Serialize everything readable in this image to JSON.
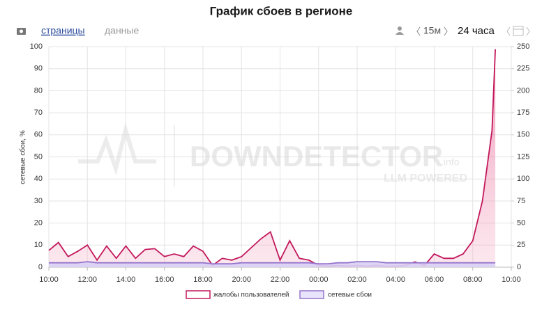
{
  "chart_data": {
    "type": "line",
    "title": "График сбоев в регионе",
    "toolbar": {
      "links": [
        "страницы",
        "данные"
      ],
      "interval": "15м",
      "range": "24 часа"
    },
    "ylabel": "сетевые сбои, %",
    "watermark": {
      "brand": "DOWNDETECTOR",
      "suffix": ".info",
      "tagline": "LLM POWERED"
    },
    "x": [
      10,
      10.5,
      11,
      11.5,
      12,
      12.5,
      13,
      13.5,
      14,
      14.5,
      15,
      15.5,
      16,
      16.5,
      17,
      17.5,
      18,
      18.5,
      19,
      19.5,
      20,
      20.5,
      21,
      21.5,
      22,
      22.5,
      23,
      23.5,
      24,
      24.5,
      25,
      25.5,
      26,
      26.5,
      27,
      27.5,
      28,
      28.5,
      29,
      29.5,
      30,
      30.5,
      31,
      31.5,
      32,
      32.5,
      33,
      33.17
    ],
    "xlim": [
      10,
      34
    ],
    "xticks": [
      {
        "value": 10,
        "label": "10:00"
      },
      {
        "value": 12,
        "label": "12:00"
      },
      {
        "value": 14,
        "label": "14:00"
      },
      {
        "value": 16,
        "label": "16:00"
      },
      {
        "value": 18,
        "label": "18:00"
      },
      {
        "value": 20,
        "label": "20:00"
      },
      {
        "value": 22,
        "label": "22:00"
      },
      {
        "value": 24,
        "label": "00:00"
      },
      {
        "value": 26,
        "label": "02:00"
      },
      {
        "value": 28,
        "label": "04:00"
      },
      {
        "value": 30,
        "label": "06:00"
      },
      {
        "value": 32,
        "label": "08:00"
      },
      {
        "value": 34,
        "label": "10:00"
      }
    ],
    "ylim": [
      0,
      100
    ],
    "yticks": [
      0,
      10,
      20,
      30,
      40,
      50,
      60,
      70,
      80,
      90,
      100
    ],
    "y2lim": [
      0,
      250
    ],
    "y2ticks": [
      0,
      25,
      50,
      75,
      100,
      125,
      150,
      175,
      200,
      225,
      250
    ],
    "grid": true,
    "legend": "bottom",
    "series": [
      {
        "name": "жалобы пользователей",
        "color": "#c2185b",
        "axis": "y2",
        "values": [
          19,
          28,
          12,
          18,
          25,
          8,
          24,
          10,
          24,
          10,
          20,
          21,
          12,
          15,
          12,
          24,
          18,
          2,
          10,
          8,
          12,
          22,
          32,
          40,
          8,
          30,
          10,
          8,
          2,
          1,
          2,
          1,
          2,
          1,
          2,
          1,
          1,
          2,
          6,
          2,
          15,
          10,
          10,
          15,
          30,
          75,
          155,
          247
        ]
      },
      {
        "name": "сетевые сбои",
        "color": "#9575cd",
        "values": [
          2,
          2,
          2,
          2,
          2.5,
          2,
          2,
          2,
          2,
          2,
          2,
          2,
          2,
          2,
          2,
          2,
          2,
          1.5,
          1.5,
          1.5,
          2,
          2,
          2,
          2,
          2,
          2,
          2,
          2,
          1.5,
          1.5,
          2,
          2,
          2.5,
          2.5,
          2.5,
          2,
          2,
          2,
          2,
          2,
          2,
          2,
          2,
          2,
          2,
          2,
          2,
          2
        ]
      }
    ]
  }
}
